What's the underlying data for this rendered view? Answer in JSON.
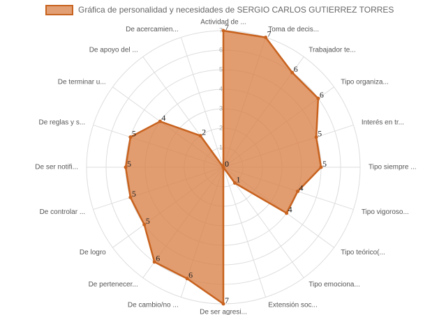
{
  "chart_data": {
    "type": "radar",
    "categories": [
      "Actividad de ...",
      "Toma de decis...",
      "Trabajador te...",
      "Tipo organiza...",
      "Interés en tr...",
      "Tipo siempre ...",
      "Tipo vigoroso...",
      "Tipo teórico(...",
      "Tipo emociona...",
      "Extensión soc...",
      "De ser agresi...",
      "De cambio/no ...",
      "De pertenecer...",
      "De logro",
      "De controlar ...",
      "De ser notifi...",
      "De reglas y s...",
      "De terminar u...",
      "De apoyo del ...",
      "De acercamien..."
    ],
    "series": [
      {
        "name": "Gráfica de personalidad y necesidades de SERGIO CARLOS GUTIERREZ TORRES",
        "color": "#c8621e",
        "values": [
          7,
          7,
          6,
          6,
          5,
          5,
          4,
          4,
          1,
          0,
          7,
          6,
          6,
          5,
          5,
          5,
          5,
          4,
          2,
          0
        ]
      }
    ],
    "ylim": [
      0,
      7
    ],
    "yticks": [
      1,
      2,
      3,
      4,
      5,
      6,
      7
    ],
    "grid": true,
    "legend": "top"
  }
}
